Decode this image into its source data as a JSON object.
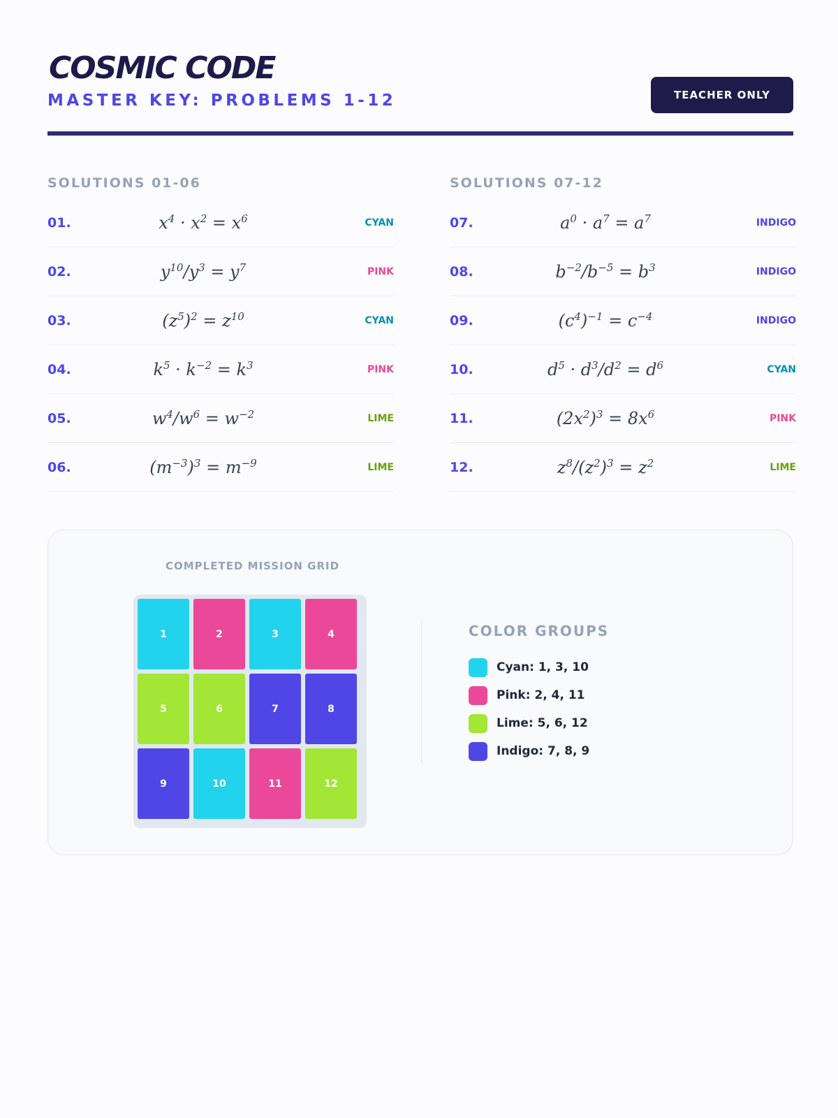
{
  "header": {
    "title": "COSMIC CODE",
    "subtitle": "MASTER KEY: PROBLEMS 1-12",
    "badge": "TEACHER ONLY"
  },
  "colors": {
    "cyan": "#22d3ee",
    "pink": "#ec4899",
    "lime": "#a3e635",
    "indigo": "#4f46e5",
    "cyan_text": "#0891b2",
    "pink_text": "#ec4899",
    "lime_text": "#65a30d",
    "indigo_text": "#4f46e5"
  },
  "solutions_left": {
    "title": "SOLUTIONS 01-06",
    "rows": [
      {
        "num": "01.",
        "expr": "x<sup>4</sup> · x<sup>2</sup> = x<sup>6</sup>",
        "color": "CYAN"
      },
      {
        "num": "02.",
        "expr": "y<sup>10</sup>/y<sup>3</sup> = y<sup>7</sup>",
        "color": "PINK"
      },
      {
        "num": "03.",
        "expr": "(z<sup>5</sup>)<sup>2</sup> = z<sup>10</sup>",
        "color": "CYAN"
      },
      {
        "num": "04.",
        "expr": "k<sup>5</sup> · k<sup>−2</sup> = k<sup>3</sup>",
        "color": "PINK"
      },
      {
        "num": "05.",
        "expr": "w<sup>4</sup>/w<sup>6</sup> = w<sup>−2</sup>",
        "color": "LIME"
      },
      {
        "num": "06.",
        "expr": "(m<sup>−3</sup>)<sup>3</sup> = m<sup>−9</sup>",
        "color": "LIME"
      }
    ]
  },
  "solutions_right": {
    "title": "SOLUTIONS 07-12",
    "rows": [
      {
        "num": "07.",
        "expr": "a<sup>0</sup> · a<sup>7</sup> = a<sup>7</sup>",
        "color": "INDIGO"
      },
      {
        "num": "08.",
        "expr": "b<sup>−2</sup>/b<sup>−5</sup> = b<sup>3</sup>",
        "color": "INDIGO"
      },
      {
        "num": "09.",
        "expr": "(c<sup>4</sup>)<sup>−1</sup> = c<sup>−4</sup>",
        "color": "INDIGO"
      },
      {
        "num": "10.",
        "expr": "d<sup>5</sup> · d<sup>3</sup>/d<sup>2</sup> = d<sup>6</sup>",
        "color": "CYAN"
      },
      {
        "num": "11.",
        "expr": "(2x<sup>2</sup>)<sup>3</sup> = 8x<sup>6</sup>",
        "color": "PINK"
      },
      {
        "num": "12.",
        "expr": "z<sup>8</sup>/(z<sup>2</sup>)<sup>3</sup> = z<sup>2</sup>",
        "color": "LIME"
      }
    ]
  },
  "mission_grid": {
    "title": "COMPLETED MISSION GRID",
    "tiles": [
      {
        "label": "1",
        "color": "cyan"
      },
      {
        "label": "2",
        "color": "pink"
      },
      {
        "label": "3",
        "color": "cyan"
      },
      {
        "label": "4",
        "color": "pink"
      },
      {
        "label": "5",
        "color": "lime"
      },
      {
        "label": "6",
        "color": "lime"
      },
      {
        "label": "7",
        "color": "indigo"
      },
      {
        "label": "8",
        "color": "indigo"
      },
      {
        "label": "9",
        "color": "indigo"
      },
      {
        "label": "10",
        "color": "cyan"
      },
      {
        "label": "11",
        "color": "pink"
      },
      {
        "label": "12",
        "color": "lime"
      }
    ]
  },
  "legend": {
    "title": "COLOR GROUPS",
    "items": [
      {
        "text": "Cyan: 1, 3, 10",
        "color": "cyan"
      },
      {
        "text": "Pink: 2, 4, 11",
        "color": "pink"
      },
      {
        "text": "Lime: 5, 6, 12",
        "color": "lime"
      },
      {
        "text": "Indigo: 7, 8, 9",
        "color": "indigo"
      }
    ]
  }
}
